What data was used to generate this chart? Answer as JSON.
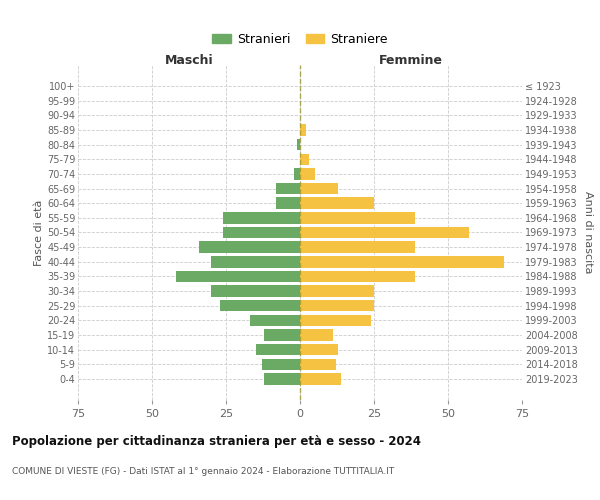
{
  "age_groups": [
    "0-4",
    "5-9",
    "10-14",
    "15-19",
    "20-24",
    "25-29",
    "30-34",
    "35-39",
    "40-44",
    "45-49",
    "50-54",
    "55-59",
    "60-64",
    "65-69",
    "70-74",
    "75-79",
    "80-84",
    "85-89",
    "90-94",
    "95-99",
    "100+"
  ],
  "birth_years": [
    "2019-2023",
    "2014-2018",
    "2009-2013",
    "2004-2008",
    "1999-2003",
    "1994-1998",
    "1989-1993",
    "1984-1988",
    "1979-1983",
    "1974-1978",
    "1969-1973",
    "1964-1968",
    "1959-1963",
    "1954-1958",
    "1949-1953",
    "1944-1948",
    "1939-1943",
    "1934-1938",
    "1929-1933",
    "1924-1928",
    "≤ 1923"
  ],
  "maschi": [
    12,
    13,
    15,
    12,
    17,
    27,
    30,
    42,
    30,
    34,
    26,
    26,
    8,
    8,
    2,
    0,
    1,
    0,
    0,
    0,
    0
  ],
  "femmine": [
    14,
    12,
    13,
    11,
    24,
    25,
    25,
    39,
    69,
    39,
    57,
    39,
    25,
    13,
    5,
    3,
    0,
    2,
    0,
    0,
    0
  ],
  "male_color": "#6aaa64",
  "female_color": "#f5c242",
  "grid_color": "#cccccc",
  "title": "Popolazione per cittadinanza straniera per età e sesso - 2024",
  "subtitle": "COMUNE DI VIESTE (FG) - Dati ISTAT al 1° gennaio 2024 - Elaborazione TUTTITALIA.IT",
  "xlabel_left": "Maschi",
  "xlabel_right": "Femmine",
  "ylabel_left": "Fasce di età",
  "ylabel_right": "Anni di nascita",
  "xlim": 75,
  "xticks": [
    -75,
    -50,
    -25,
    0,
    25,
    50,
    75
  ],
  "legend_stranieri": "Stranieri",
  "legend_straniere": "Straniere"
}
